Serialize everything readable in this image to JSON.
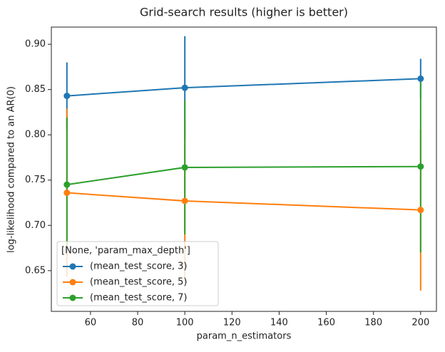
{
  "chart_data": {
    "type": "errorbar-line",
    "title": "Grid-search results (higher is better)",
    "x_label": "param_n_estimators",
    "y_label": "log-likelihood compared to an AR(0)",
    "x": [
      50,
      100,
      200
    ],
    "series": [
      {
        "name": "(mean_test_score, 3)",
        "color": "#1f77b4",
        "values": [
          0.843,
          0.852,
          0.862
        ],
        "errors": [
          0.037,
          0.057,
          0.022
        ]
      },
      {
        "name": "(mean_test_score, 5)",
        "color": "#ff7f0e",
        "values": [
          0.736,
          0.727,
          0.717
        ],
        "errors": [
          0.093,
          0.09,
          0.089
        ]
      },
      {
        "name": "(mean_test_score, 7)",
        "color": "#2ca02c",
        "values": [
          0.745,
          0.764,
          0.765
        ],
        "errors": [
          0.074,
          0.074,
          0.095
        ]
      }
    ],
    "legend_title": "[None, 'param_max_depth']",
    "legend": "lower left",
    "xlim": [
      43.4,
      206.7
    ],
    "xticks": [
      60,
      80,
      100,
      120,
      140,
      160,
      180,
      200
    ],
    "ylim": [
      0.605,
      0.919
    ],
    "yticks": [
      0.65,
      {
        "value": 0.7,
        "label": "0.70"
      },
      0.75,
      {
        "value": 0.8,
        "label": "0.80"
      },
      0.85,
      {
        "value": 0.9,
        "label": "0.90"
      }
    ]
  }
}
